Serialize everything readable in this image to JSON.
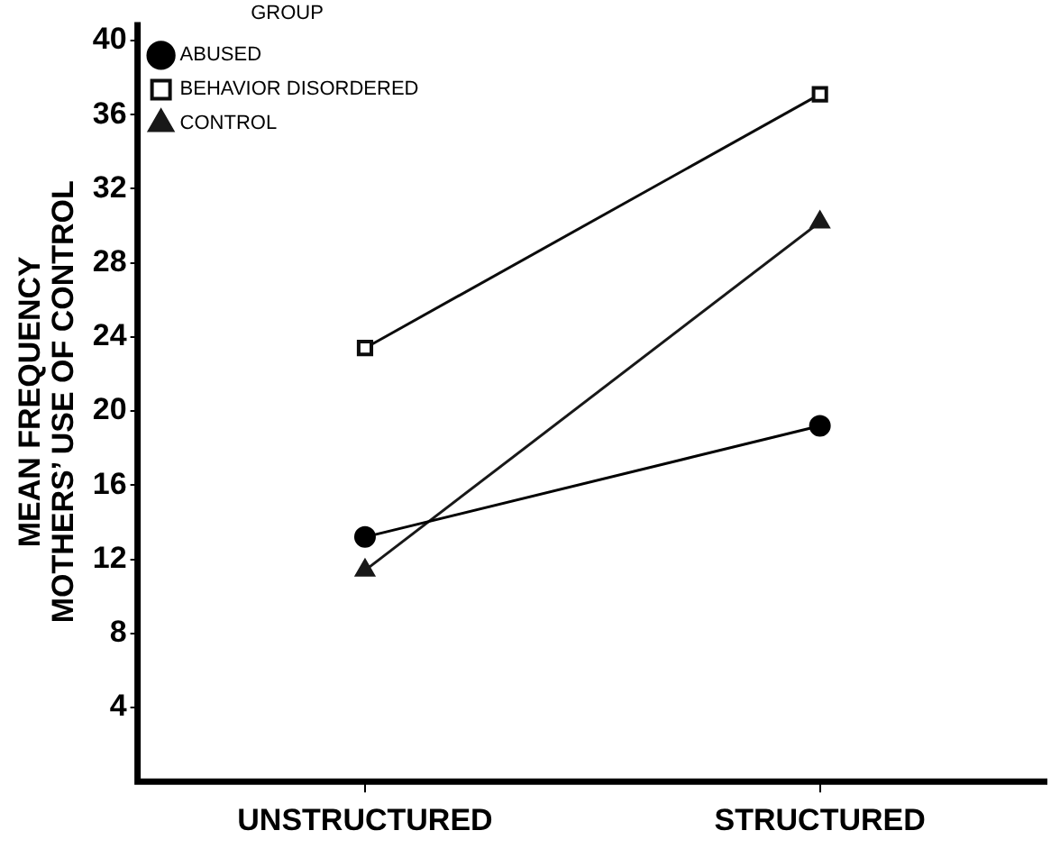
{
  "chart_data": {
    "type": "line",
    "ylabel": "MEAN FREQUENCY\nMOTHERS’ USE OF CONTROL",
    "legend_title": "GROUP",
    "categories": [
      "UNSTRUCTURED",
      "STRUCTURED"
    ],
    "series": [
      {
        "name": "ABUSED",
        "color": "#000000",
        "marker": "circle",
        "values": [
          13.2,
          19.2
        ]
      },
      {
        "name": "BEHAVIOR DISORDERED",
        "color": "#0c0c0c",
        "marker": "square",
        "values": [
          23.4,
          37.1
        ]
      },
      {
        "name": "CONTROL",
        "color": "#181818",
        "marker": "triangle",
        "values": [
          11.4,
          30.2
        ]
      }
    ],
    "ylim": [
      0,
      41
    ],
    "yticks": [
      4,
      8,
      12,
      16,
      20,
      24,
      28,
      32,
      36,
      40
    ],
    "grid": false,
    "legend": "top left"
  }
}
